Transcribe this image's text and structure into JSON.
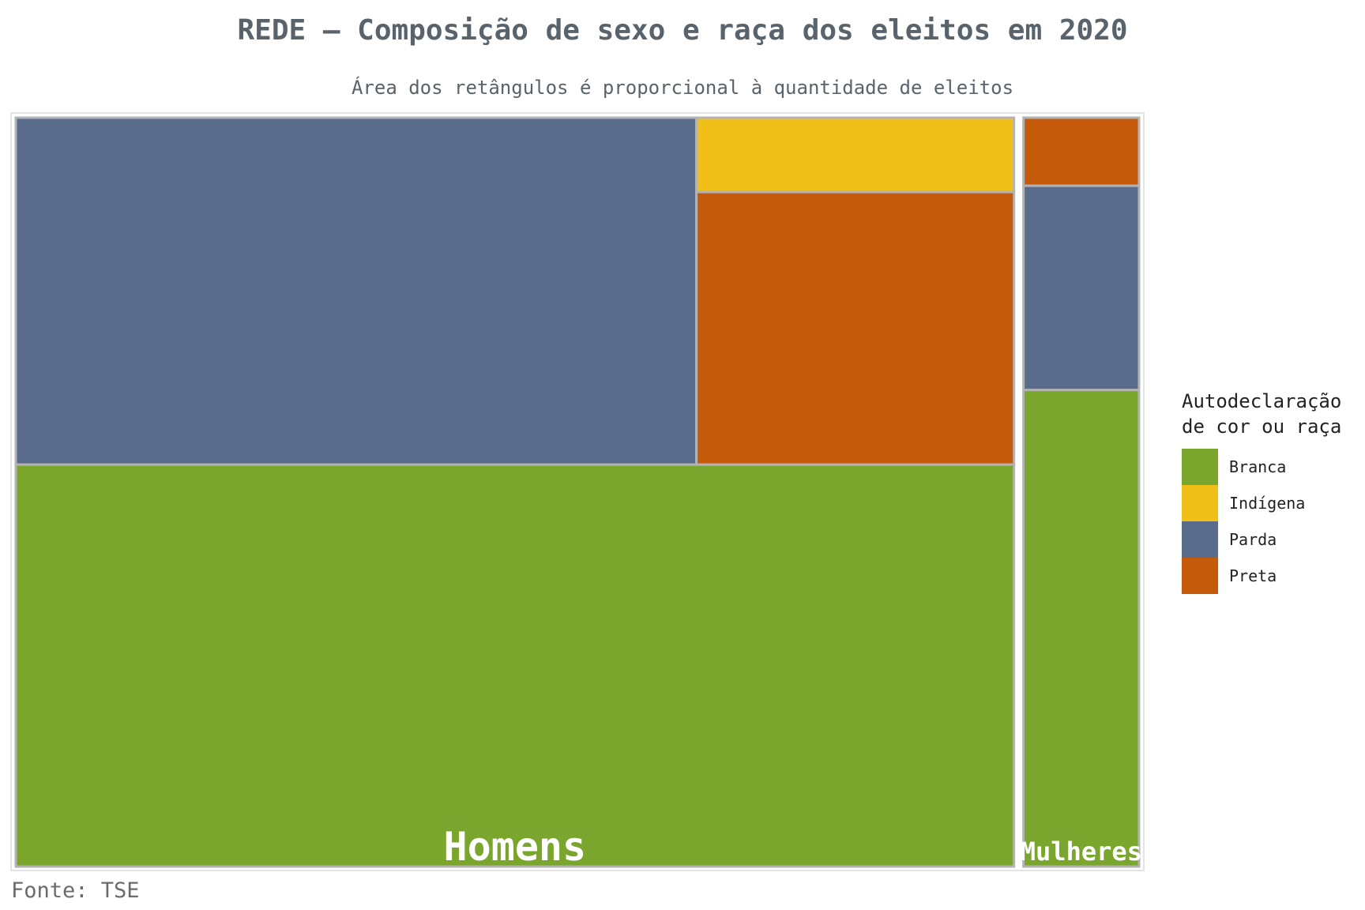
{
  "chart_data": {
    "type": "treemap",
    "title": "REDE – Composição de sexo e raça dos eleitos em 2020",
    "subtitle": "Área dos retângulos é proporcional à quantidade de eleitos",
    "groups": [
      {
        "name": "Homens",
        "children": [
          {
            "category": "Branca",
            "value": 51
          },
          {
            "category": "Parda",
            "value": 30
          },
          {
            "category": "Preta",
            "value": 11
          },
          {
            "category": "Indígena",
            "value": 3
          }
        ]
      },
      {
        "name": "Mulheres",
        "children": [
          {
            "category": "Branca",
            "value": 7
          },
          {
            "category": "Parda",
            "value": 3
          },
          {
            "category": "Preta",
            "value": 1
          }
        ]
      }
    ],
    "legend": {
      "title": "Autodeclaração\nde cor ou raça",
      "position": "right",
      "items": [
        {
          "label": "Branca",
          "color": "#7ba62e"
        },
        {
          "label": "Indígena",
          "color": "#f0c018"
        },
        {
          "label": "Parda",
          "color": "#5a6c8c"
        },
        {
          "label": "Preta",
          "color": "#c55a0b"
        }
      ]
    },
    "source": "Fonte: TSE"
  }
}
